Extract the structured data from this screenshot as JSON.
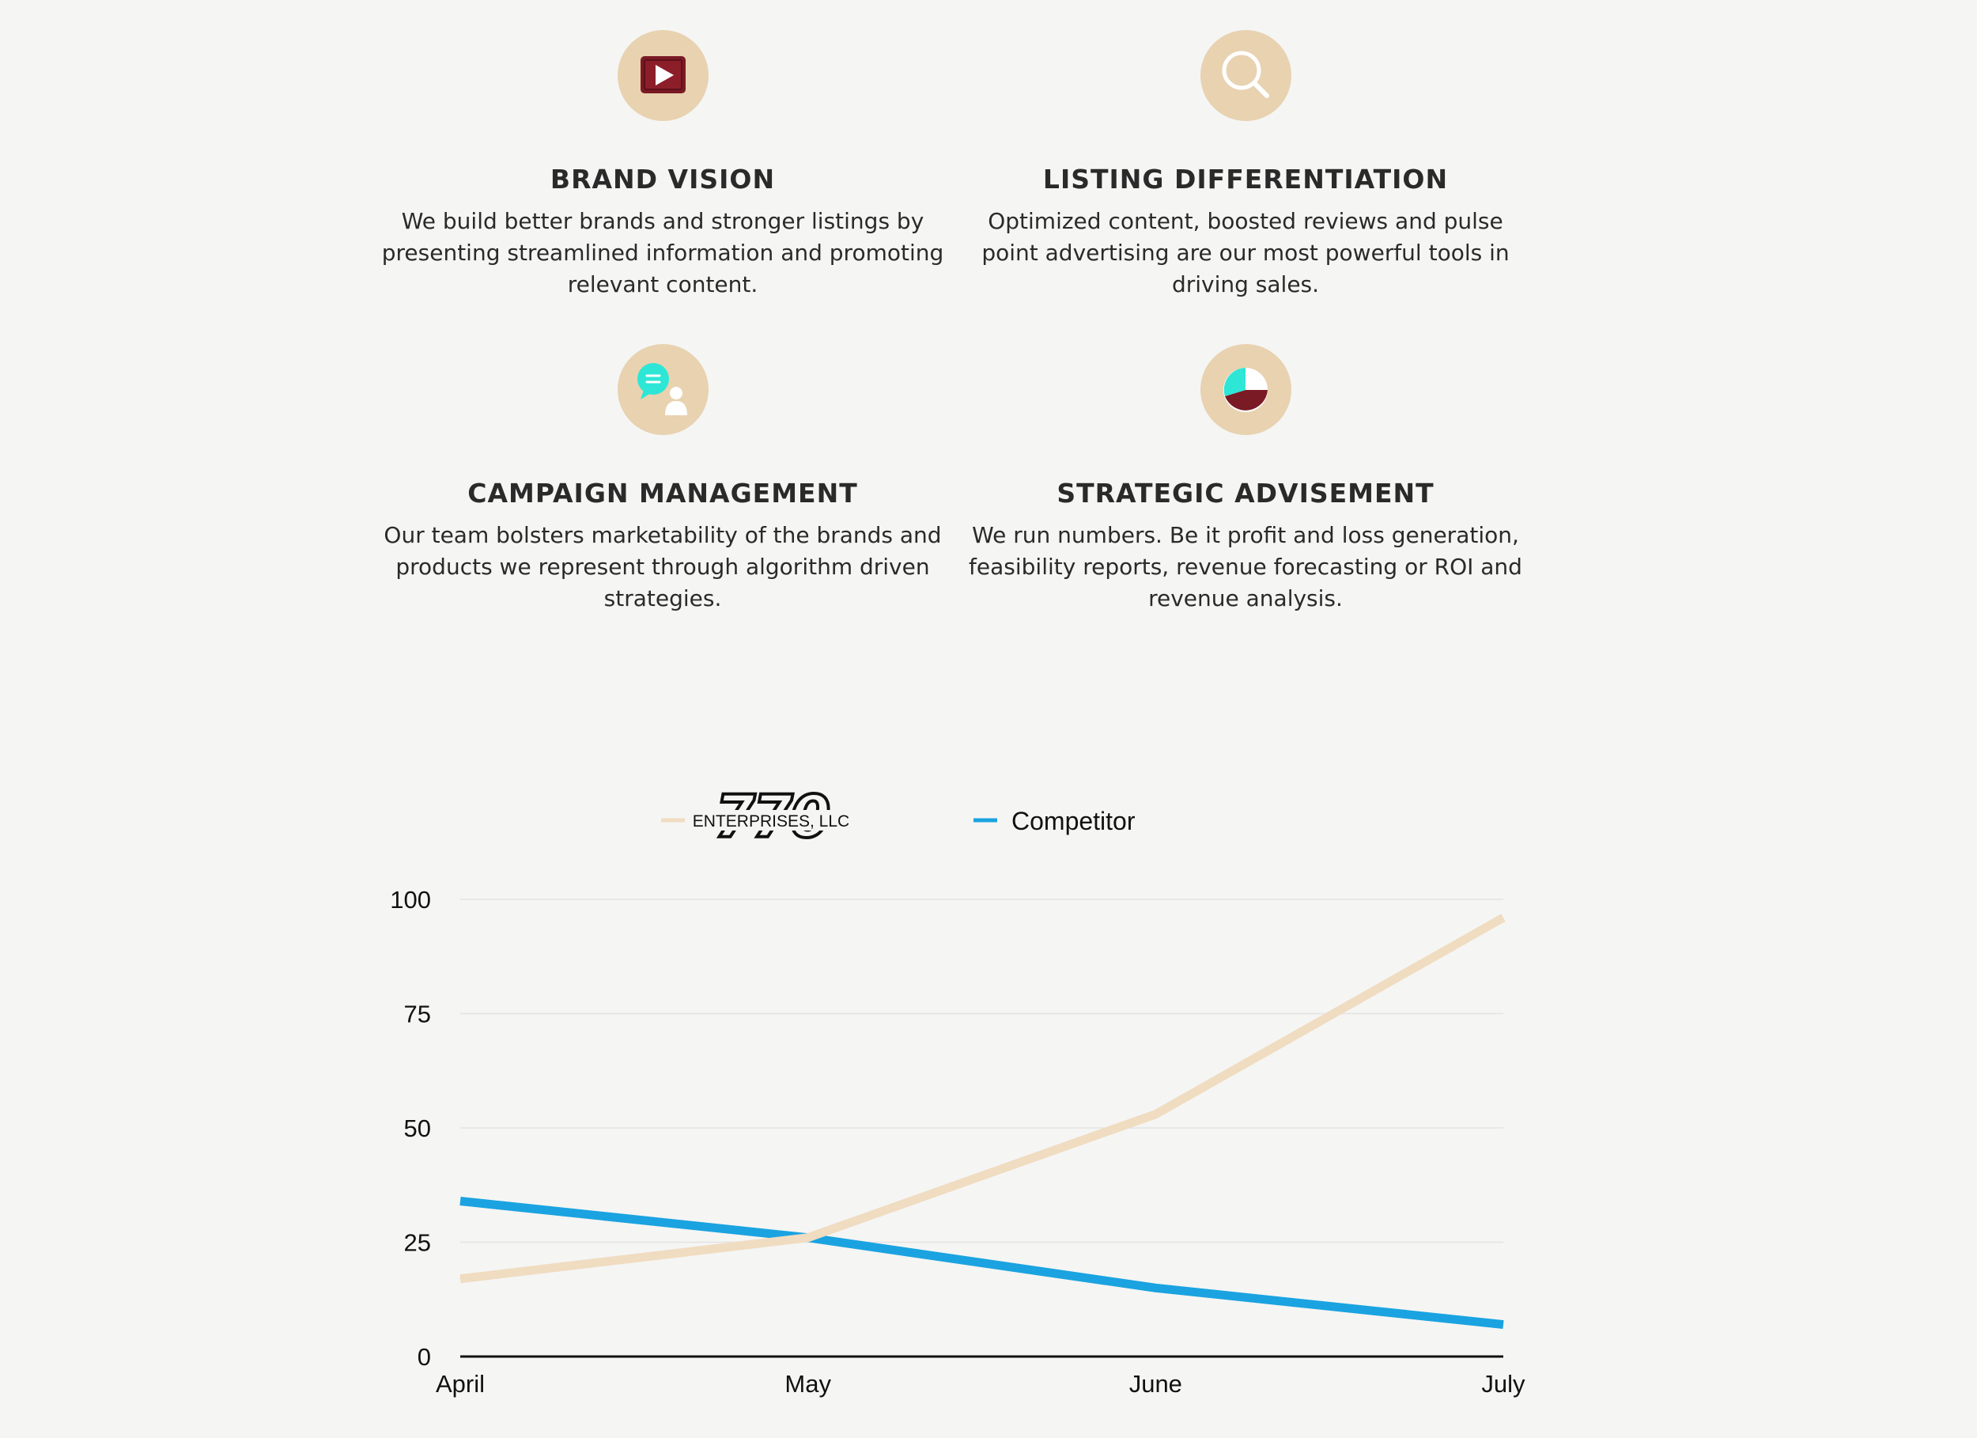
{
  "features": [
    {
      "icon": "play-video-icon",
      "title": "BRAND VISION",
      "text": "We build better brands and stronger listings by presenting streamlined information and promoting relevant content."
    },
    {
      "icon": "magnifier-icon",
      "title": "LISTING DIFFERENTIATION",
      "text": "Optimized content, boosted reviews and pulse point advertising are our most powerful tools in driving sales."
    },
    {
      "icon": "chat-person-icon",
      "title": "CAMPAIGN MANAGEMENT",
      "text": "Our team bolsters marketability of the brands and products we represent through algorithm driven strategies."
    },
    {
      "icon": "pie-chart-icon",
      "title": "STRATEGIC ADVISEMENT",
      "text": "We run numbers. Be it profit and loss generation, feasibility reports, revenue forecasting or ROI and revenue analysis."
    }
  ],
  "colors": {
    "icon_bg": "#e8d2b0",
    "brand_line": "#f0dcc0",
    "competitor_line": "#1aa3e0",
    "dark_red": "#7a1a24",
    "cyan": "#2ee6d6"
  },
  "chart_data": {
    "type": "line",
    "categories": [
      "April",
      "May",
      "June",
      "July"
    ],
    "series": [
      {
        "name": "770 ENTERPRISES, LLC",
        "logo_text": "ENTERPRISES, LLC",
        "logo_mark": "770",
        "values": [
          17,
          26,
          53,
          96
        ]
      },
      {
        "name": "Competitor",
        "values": [
          34,
          26,
          15,
          7
        ]
      }
    ],
    "yticks": [
      "0",
      "25",
      "50",
      "75",
      "100"
    ],
    "ylim": [
      0,
      100
    ],
    "legend": "top",
    "grid": true
  }
}
